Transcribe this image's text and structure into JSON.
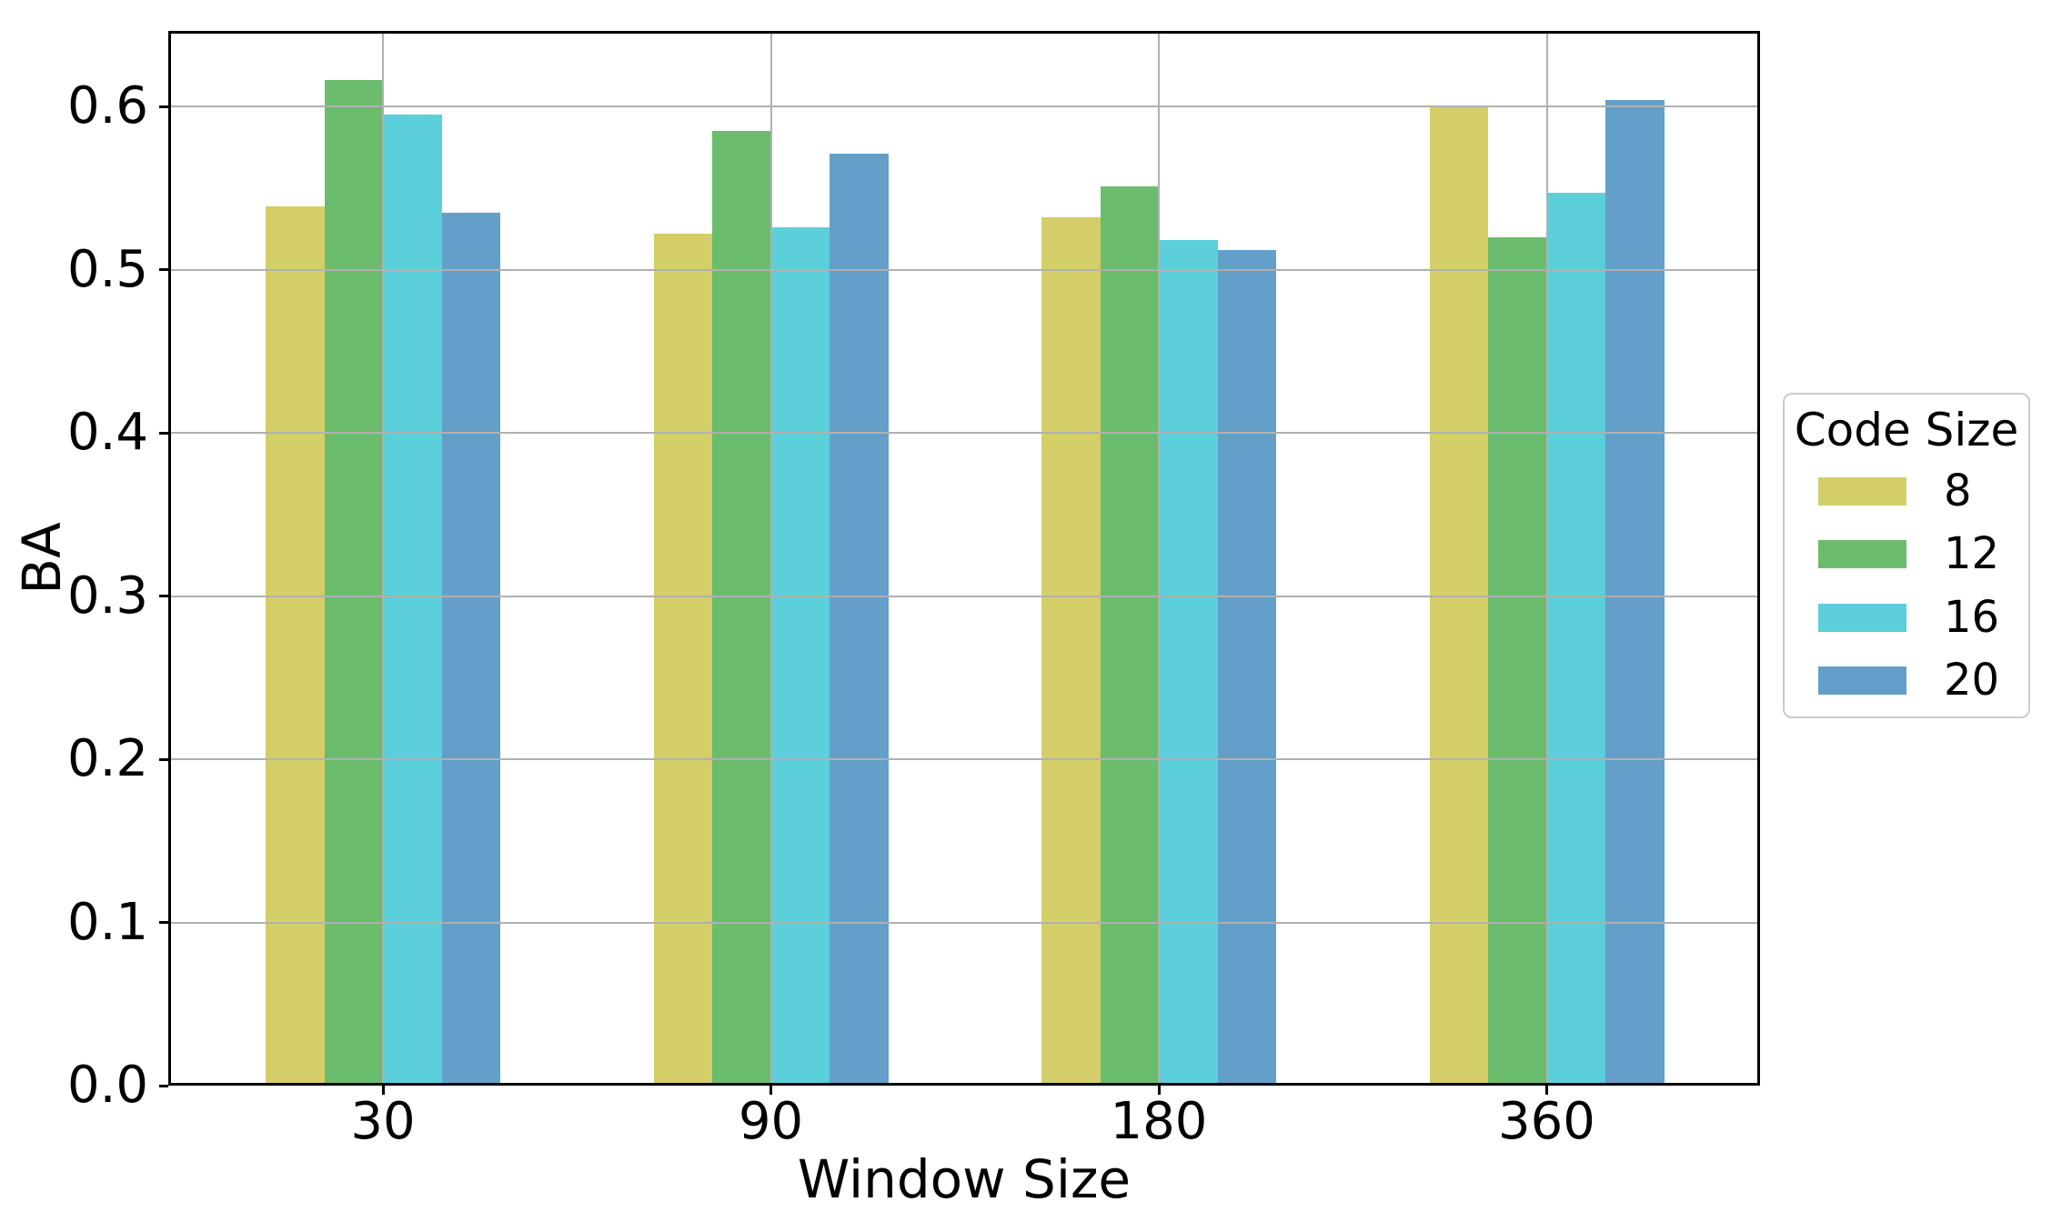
{
  "colors": {
    "background": "#ffffff",
    "grid": "#b0b0b0",
    "spine": "#000000",
    "legend_border": "#cccccc",
    "text": "#000000"
  },
  "chart_data": {
    "type": "bar",
    "title": "",
    "xlabel": "Window Size",
    "ylabel": "BA",
    "categories": [
      "30",
      "90",
      "180",
      "360"
    ],
    "series": [
      {
        "name": "8",
        "color": "#d4ce68",
        "values": [
          0.539,
          0.522,
          0.532,
          0.6
        ]
      },
      {
        "name": "12",
        "color": "#6bbc6d",
        "values": [
          0.616,
          0.585,
          0.551,
          0.52
        ]
      },
      {
        "name": "16",
        "color": "#5bcfda",
        "values": [
          0.595,
          0.526,
          0.518,
          0.547
        ]
      },
      {
        "name": "20",
        "color": "#639fc9",
        "values": [
          0.535,
          0.571,
          0.512,
          0.604
        ]
      }
    ],
    "yticks": [
      "0.0",
      "0.1",
      "0.2",
      "0.3",
      "0.4",
      "0.5",
      "0.6"
    ],
    "ylim": [
      0,
      0.646
    ],
    "grid": true,
    "legend": {
      "title": "Code Size",
      "position": "right-outside",
      "labels": [
        "8",
        "12",
        "16",
        "20"
      ]
    }
  }
}
